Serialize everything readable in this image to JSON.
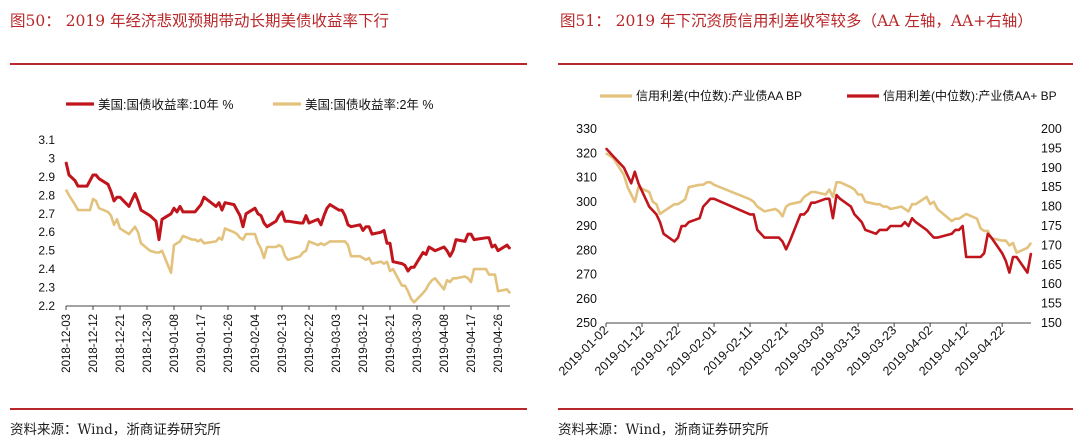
{
  "panels": [
    {
      "title": "图50： 2019 年经济悲观预期带动长期美债收益率下行",
      "source": "资料来源：Wind，浙商证券研究所"
    },
    {
      "title": "图51： 2019 年下沉资质信用利差收窄较多（AA 左轴，AA+右轴）",
      "source": "资料来源：Wind，浙商证券研究所"
    }
  ],
  "chart_data": [
    {
      "type": "line",
      "title": "",
      "ylim": [
        2.2,
        3.1
      ],
      "yticks": [
        "2.2",
        "2.3",
        "2.4",
        "2.5",
        "2.6",
        "2.7",
        "2.8",
        "2.9",
        "3",
        "3.1"
      ],
      "xticks": [
        "2018-12-03",
        "2018-12-12",
        "2018-12-21",
        "2018-12-30",
        "2019-01-08",
        "2019-01-17",
        "2019-01-26",
        "2019-02-04",
        "2019-02-13",
        "2019-02-22",
        "2019-03-03",
        "2019-03-12",
        "2019-03-21",
        "2019-03-30",
        "2019-04-08",
        "2019-04-17",
        "2019-04-26"
      ],
      "legend_position": "top",
      "series": [
        {
          "name": "美国:国债收益率:10年 %",
          "color": "#c0151c",
          "x": [
            "2018-12-03",
            "2018-12-04",
            "2018-12-06",
            "2018-12-07",
            "2018-12-10",
            "2018-12-11",
            "2018-12-12",
            "2018-12-13",
            "2018-12-14",
            "2018-12-17",
            "2018-12-18",
            "2018-12-19",
            "2018-12-20",
            "2018-12-21",
            "2018-12-24",
            "2018-12-26",
            "2018-12-27",
            "2018-12-28",
            "2018-12-31",
            "2019-01-02",
            "2019-01-03",
            "2019-01-04",
            "2019-01-07",
            "2019-01-08",
            "2019-01-09",
            "2019-01-10",
            "2019-01-11",
            "2019-01-14",
            "2019-01-15",
            "2019-01-16",
            "2019-01-17",
            "2019-01-18",
            "2019-01-22",
            "2019-01-23",
            "2019-01-24",
            "2019-01-25",
            "2019-01-28",
            "2019-01-29",
            "2019-01-30",
            "2019-01-31",
            "2019-02-01",
            "2019-02-04",
            "2019-02-05",
            "2019-02-06",
            "2019-02-07",
            "2019-02-08",
            "2019-02-11",
            "2019-02-12",
            "2019-02-13",
            "2019-02-14",
            "2019-02-15",
            "2019-02-19",
            "2019-02-20",
            "2019-02-21",
            "2019-02-22",
            "2019-02-25",
            "2019-02-26",
            "2019-02-27",
            "2019-02-28",
            "2019-03-01",
            "2019-03-04",
            "2019-03-05",
            "2019-03-06",
            "2019-03-07",
            "2019-03-08",
            "2019-03-11",
            "2019-03-12",
            "2019-03-13",
            "2019-03-14",
            "2019-03-15",
            "2019-03-18",
            "2019-03-19",
            "2019-03-20",
            "2019-03-21",
            "2019-03-22",
            "2019-03-25",
            "2019-03-26",
            "2019-03-27",
            "2019-03-28",
            "2019-03-29",
            "2019-04-01",
            "2019-04-02",
            "2019-04-03",
            "2019-04-04",
            "2019-04-05",
            "2019-04-08",
            "2019-04-09",
            "2019-04-10",
            "2019-04-11",
            "2019-04-12",
            "2019-04-15",
            "2019-04-16",
            "2019-04-17",
            "2019-04-18",
            "2019-04-22",
            "2019-04-23",
            "2019-04-24",
            "2019-04-25",
            "2019-04-26",
            "2019-04-29",
            "2019-04-30"
          ],
          "values": [
            2.98,
            2.91,
            2.88,
            2.85,
            2.85,
            2.88,
            2.91,
            2.91,
            2.89,
            2.86,
            2.82,
            2.77,
            2.79,
            2.79,
            2.74,
            2.81,
            2.77,
            2.72,
            2.69,
            2.66,
            2.56,
            2.67,
            2.7,
            2.73,
            2.71,
            2.74,
            2.71,
            2.71,
            2.71,
            2.73,
            2.75,
            2.79,
            2.74,
            2.76,
            2.72,
            2.76,
            2.75,
            2.72,
            2.69,
            2.63,
            2.7,
            2.73,
            2.7,
            2.69,
            2.65,
            2.63,
            2.66,
            2.69,
            2.71,
            2.66,
            2.66,
            2.65,
            2.65,
            2.69,
            2.65,
            2.67,
            2.64,
            2.69,
            2.73,
            2.75,
            2.72,
            2.72,
            2.69,
            2.64,
            2.63,
            2.64,
            2.61,
            2.63,
            2.63,
            2.59,
            2.6,
            2.61,
            2.54,
            2.54,
            2.44,
            2.43,
            2.42,
            2.39,
            2.41,
            2.41,
            2.49,
            2.48,
            2.52,
            2.51,
            2.5,
            2.52,
            2.5,
            2.47,
            2.5,
            2.56,
            2.55,
            2.59,
            2.59,
            2.56,
            2.57,
            2.57,
            2.52,
            2.53,
            2.5,
            2.53,
            2.51
          ]
        },
        {
          "name": "美国:国债收益率:2年 %",
          "color": "#e3c27e",
          "x": [
            "2018-12-03",
            "2018-12-04",
            "2018-12-06",
            "2018-12-07",
            "2018-12-10",
            "2018-12-11",
            "2018-12-12",
            "2018-12-13",
            "2018-12-14",
            "2018-12-17",
            "2018-12-18",
            "2018-12-19",
            "2018-12-20",
            "2018-12-21",
            "2018-12-24",
            "2018-12-26",
            "2018-12-27",
            "2018-12-28",
            "2018-12-31",
            "2019-01-02",
            "2019-01-03",
            "2019-01-04",
            "2019-01-07",
            "2019-01-08",
            "2019-01-09",
            "2019-01-10",
            "2019-01-11",
            "2019-01-14",
            "2019-01-15",
            "2019-01-16",
            "2019-01-17",
            "2019-01-18",
            "2019-01-22",
            "2019-01-23",
            "2019-01-24",
            "2019-01-25",
            "2019-01-28",
            "2019-01-29",
            "2019-01-30",
            "2019-01-31",
            "2019-02-01",
            "2019-02-04",
            "2019-02-05",
            "2019-02-06",
            "2019-02-07",
            "2019-02-08",
            "2019-02-11",
            "2019-02-12",
            "2019-02-13",
            "2019-02-14",
            "2019-02-15",
            "2019-02-19",
            "2019-02-20",
            "2019-02-21",
            "2019-02-22",
            "2019-02-25",
            "2019-02-26",
            "2019-02-27",
            "2019-02-28",
            "2019-03-01",
            "2019-03-04",
            "2019-03-05",
            "2019-03-06",
            "2019-03-07",
            "2019-03-08",
            "2019-03-11",
            "2019-03-12",
            "2019-03-13",
            "2019-03-14",
            "2019-03-15",
            "2019-03-18",
            "2019-03-19",
            "2019-03-20",
            "2019-03-21",
            "2019-03-22",
            "2019-03-25",
            "2019-03-26",
            "2019-03-27",
            "2019-03-28",
            "2019-03-29",
            "2019-04-01",
            "2019-04-02",
            "2019-04-03",
            "2019-04-04",
            "2019-04-05",
            "2019-04-08",
            "2019-04-09",
            "2019-04-10",
            "2019-04-11",
            "2019-04-12",
            "2019-04-15",
            "2019-04-16",
            "2019-04-17",
            "2019-04-18",
            "2019-04-22",
            "2019-04-23",
            "2019-04-24",
            "2019-04-25",
            "2019-04-26",
            "2019-04-29",
            "2019-04-30"
          ],
          "values": [
            2.83,
            2.8,
            2.75,
            2.72,
            2.72,
            2.72,
            2.78,
            2.77,
            2.73,
            2.71,
            2.69,
            2.64,
            2.67,
            2.62,
            2.59,
            2.63,
            2.6,
            2.54,
            2.5,
            2.49,
            2.49,
            2.5,
            2.38,
            2.53,
            2.54,
            2.55,
            2.58,
            2.56,
            2.56,
            2.55,
            2.56,
            2.54,
            2.55,
            2.57,
            2.56,
            2.62,
            2.6,
            2.59,
            2.57,
            2.56,
            2.59,
            2.59,
            2.54,
            2.51,
            2.46,
            2.52,
            2.52,
            2.53,
            2.52,
            2.47,
            2.45,
            2.47,
            2.49,
            2.5,
            2.55,
            2.53,
            2.54,
            2.53,
            2.54,
            2.55,
            2.55,
            2.55,
            2.55,
            2.53,
            2.47,
            2.47,
            2.46,
            2.45,
            2.46,
            2.43,
            2.44,
            2.43,
            2.44,
            2.39,
            2.4,
            2.31,
            2.31,
            2.28,
            2.24,
            2.22,
            2.27,
            2.29,
            2.32,
            2.34,
            2.35,
            2.29,
            2.34,
            2.33,
            2.35,
            2.35,
            2.36,
            2.35,
            2.33,
            2.4,
            2.4,
            2.37,
            2.37,
            2.37,
            2.28,
            2.29,
            2.27
          ]
        }
      ]
    },
    {
      "type": "line",
      "title": "",
      "ylim_left": [
        250,
        330
      ],
      "ylim_right": [
        150,
        200
      ],
      "yticks_left": [
        "250",
        "260",
        "270",
        "280",
        "290",
        "300",
        "310",
        "320",
        "330"
      ],
      "yticks_right": [
        "150",
        "155",
        "160",
        "165",
        "170",
        "175",
        "180",
        "185",
        "190",
        "195",
        "200"
      ],
      "xticks": [
        "2019-01-02",
        "2019-01-12",
        "2019-01-22",
        "2019-02-01",
        "2019-02-11",
        "2019-02-21",
        "2019-03-03",
        "2019-03-13",
        "2019-03-23",
        "2019-04-02",
        "2019-04-12",
        "2019-04-22"
      ],
      "legend_position": "top",
      "series": [
        {
          "name": "信用利差(中位数):产业债AA BP",
          "axis": "left",
          "color": "#e3c27e",
          "x": [
            "2019-01-02",
            "2019-01-04",
            "2019-01-07",
            "2019-01-08",
            "2019-01-09",
            "2019-01-10",
            "2019-01-11",
            "2019-01-14",
            "2019-01-15",
            "2019-01-16",
            "2019-01-17",
            "2019-01-18",
            "2019-01-21",
            "2019-01-22",
            "2019-01-23",
            "2019-01-24",
            "2019-01-25",
            "2019-01-28",
            "2019-01-29",
            "2019-01-30",
            "2019-01-31",
            "2019-02-01",
            "2019-02-11",
            "2019-02-12",
            "2019-02-13",
            "2019-02-14",
            "2019-02-15",
            "2019-02-18",
            "2019-02-19",
            "2019-02-20",
            "2019-02-21",
            "2019-02-22",
            "2019-02-25",
            "2019-02-26",
            "2019-02-27",
            "2019-02-28",
            "2019-03-01",
            "2019-03-04",
            "2019-03-05",
            "2019-03-06",
            "2019-03-07",
            "2019-03-08",
            "2019-03-11",
            "2019-03-12",
            "2019-03-13",
            "2019-03-14",
            "2019-03-15",
            "2019-03-18",
            "2019-03-19",
            "2019-03-20",
            "2019-03-21",
            "2019-03-22",
            "2019-03-25",
            "2019-03-26",
            "2019-03-27",
            "2019-03-28",
            "2019-03-29",
            "2019-04-01",
            "2019-04-02",
            "2019-04-03",
            "2019-04-04",
            "2019-04-08",
            "2019-04-09",
            "2019-04-10",
            "2019-04-11",
            "2019-04-12",
            "2019-04-15",
            "2019-04-16",
            "2019-04-17",
            "2019-04-18",
            "2019-04-19",
            "2019-04-22",
            "2019-04-23",
            "2019-04-24",
            "2019-04-25",
            "2019-04-26",
            "2019-04-29",
            "2019-04-30"
          ],
          "values": [
            320,
            318,
            311,
            306,
            303,
            300,
            306,
            304,
            300,
            299,
            295,
            296,
            299,
            299,
            300,
            301,
            306,
            307,
            307,
            308,
            308,
            307,
            301,
            300,
            298,
            297,
            296,
            297,
            296,
            294,
            298,
            299,
            300,
            302,
            303,
            304,
            304,
            303,
            305,
            302,
            308,
            308,
            306,
            305,
            303,
            303,
            300,
            299,
            299,
            298,
            298,
            297,
            298,
            297,
            296,
            299,
            299,
            302,
            299,
            300,
            297,
            292,
            293,
            293,
            294,
            295,
            293,
            289,
            288,
            288,
            285,
            284,
            284,
            282,
            283,
            279,
            281,
            283
          ]
        },
        {
          "name": "信用利差(中位数):产业债AA+ BP",
          "axis": "right",
          "color": "#c0151c",
          "x": [
            "2019-01-02",
            "2019-01-04",
            "2019-01-07",
            "2019-01-08",
            "2019-01-09",
            "2019-01-10",
            "2019-01-11",
            "2019-01-14",
            "2019-01-15",
            "2019-01-16",
            "2019-01-17",
            "2019-01-18",
            "2019-01-21",
            "2019-01-22",
            "2019-01-23",
            "2019-01-24",
            "2019-01-25",
            "2019-01-28",
            "2019-01-29",
            "2019-01-30",
            "2019-01-31",
            "2019-02-01",
            "2019-02-11",
            "2019-02-12",
            "2019-02-13",
            "2019-02-14",
            "2019-02-15",
            "2019-02-18",
            "2019-02-19",
            "2019-02-20",
            "2019-02-21",
            "2019-02-22",
            "2019-02-25",
            "2019-02-26",
            "2019-02-27",
            "2019-02-28",
            "2019-03-01",
            "2019-03-04",
            "2019-03-05",
            "2019-03-06",
            "2019-03-07",
            "2019-03-08",
            "2019-03-11",
            "2019-03-12",
            "2019-03-13",
            "2019-03-14",
            "2019-03-15",
            "2019-03-18",
            "2019-03-19",
            "2019-03-20",
            "2019-03-21",
            "2019-03-22",
            "2019-03-25",
            "2019-03-26",
            "2019-03-27",
            "2019-03-28",
            "2019-03-29",
            "2019-04-01",
            "2019-04-02",
            "2019-04-03",
            "2019-04-04",
            "2019-04-08",
            "2019-04-09",
            "2019-04-10",
            "2019-04-11",
            "2019-04-12",
            "2019-04-15",
            "2019-04-16",
            "2019-04-17",
            "2019-04-18",
            "2019-04-19",
            "2019-04-22",
            "2019-04-23",
            "2019-04-24",
            "2019-04-25",
            "2019-04-26",
            "2019-04-29",
            "2019-04-30"
          ],
          "values": [
            195,
            193,
            190,
            188,
            186,
            189,
            186,
            180,
            179,
            178,
            176,
            173,
            171,
            172,
            175,
            175,
            176,
            177,
            180,
            181,
            182,
            182,
            178,
            178,
            174,
            173,
            172,
            172,
            172,
            171,
            169,
            171,
            178,
            178,
            179,
            181,
            181,
            182,
            182,
            177,
            183,
            182,
            180,
            178,
            177,
            176,
            174,
            173,
            174,
            174,
            174,
            175,
            175,
            176,
            175,
            177,
            176,
            174,
            173,
            172,
            172,
            173,
            174,
            174,
            175,
            167,
            167,
            167,
            168,
            173,
            172,
            168,
            166,
            163,
            167,
            167,
            163,
            168
          ]
        }
      ]
    }
  ]
}
